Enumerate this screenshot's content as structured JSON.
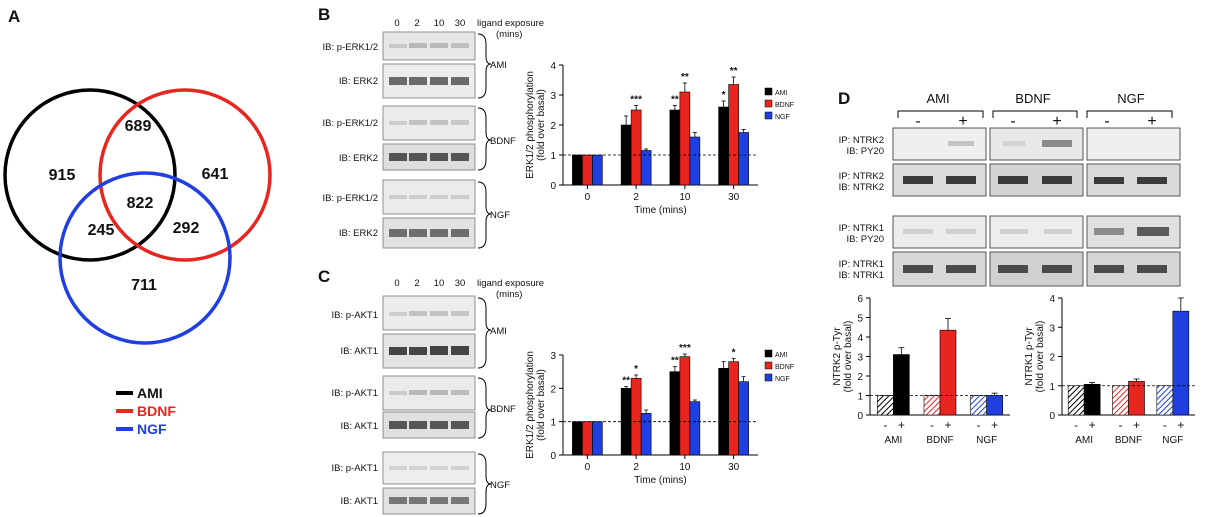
{
  "panels": {
    "a": {
      "letter": "A",
      "venn": {
        "ami_only": "915",
        "bdnf_only": "641",
        "ngf_only": "711",
        "ami_bdnf": "689",
        "ami_ngf": "245",
        "bdnf_ngf": "292",
        "all": "822"
      },
      "legend": [
        {
          "label": "AMI",
          "color": "#000000"
        },
        {
          "label": "BDNF",
          "color": "#e8251f"
        },
        {
          "label": "NGF",
          "color": "#1f3fe0"
        }
      ]
    },
    "b": {
      "letter": "B",
      "lane_labels": [
        "0",
        "2",
        "10",
        "30"
      ],
      "exposure_label": "ligand exposure",
      "exposure_unit": "(mins)",
      "blots": [
        {
          "group": "AMI",
          "rows": [
            "IB: p-ERK1/2",
            "IB: ERK2"
          ]
        },
        {
          "group": "BDNF",
          "rows": [
            "IB: p-ERK1/2",
            "IB: ERK2"
          ]
        },
        {
          "group": "NGF",
          "rows": [
            "IB: p-ERK1/2",
            "IB: ERK2"
          ]
        }
      ]
    },
    "c": {
      "letter": "C",
      "lane_labels": [
        "0",
        "2",
        "10",
        "30"
      ],
      "exposure_label": "ligand exposure",
      "exposure_unit": "(mins)",
      "blots": [
        {
          "group": "AMI",
          "rows": [
            "IB: p-AKT1",
            "IB: AKT1"
          ]
        },
        {
          "group": "BDNF",
          "rows": [
            "IB: p-AKT1",
            "IB: AKT1"
          ]
        },
        {
          "group": "NGF",
          "rows": [
            "IB: p-AKT1",
            "IB: AKT1"
          ]
        }
      ]
    },
    "d": {
      "letter": "D",
      "groups": [
        "AMI",
        "BDNF",
        "NGF"
      ],
      "sign_minus": "-",
      "sign_plus": "+",
      "blot_rows": [
        {
          "lines": [
            "IP: NTRK2",
            "IB: PY20"
          ]
        },
        {
          "lines": [
            "IP: NTRK2",
            "IB: NTRK2"
          ]
        },
        {
          "lines": [
            "IP: NTRK1",
            "IB: PY20"
          ]
        },
        {
          "lines": [
            "IP: NTRK1",
            "IB: NTRK1"
          ]
        }
      ]
    }
  },
  "chart_data": [
    {
      "id": "b",
      "type": "bar",
      "title": "",
      "xlabel": "Time (mins)",
      "ylabel": [
        "ERK1/2 phosphorylation",
        "(fold over basal)"
      ],
      "categories": [
        "0",
        "2",
        "10",
        "30"
      ],
      "ylim": [
        0,
        4
      ],
      "yticks": [
        "0",
        "1",
        "2",
        "3",
        "4"
      ],
      "baseline": 1,
      "series": [
        {
          "name": "AMI",
          "color": "#000000",
          "values": [
            1,
            2.0,
            2.5,
            2.6
          ],
          "errors": [
            0,
            0.3,
            0.15,
            0.2
          ]
        },
        {
          "name": "BDNF",
          "color": "#e8251f",
          "values": [
            1,
            2.5,
            3.1,
            3.35
          ],
          "errors": [
            0,
            0.15,
            0.3,
            0.25
          ]
        },
        {
          "name": "NGF",
          "color": "#1f3fe0",
          "values": [
            1,
            1.15,
            1.6,
            1.75
          ],
          "errors": [
            0,
            0.05,
            0.15,
            0.1
          ]
        }
      ],
      "annotations": [
        {
          "category": "2",
          "series": "BDNF",
          "text": "***"
        },
        {
          "category": "10",
          "series": "AMI",
          "text": "**"
        },
        {
          "category": "10",
          "series": "BDNF",
          "text": "**"
        },
        {
          "category": "30",
          "series": "AMI",
          "text": "*"
        },
        {
          "category": "30",
          "series": "BDNF",
          "text": "**"
        }
      ]
    },
    {
      "id": "c",
      "type": "bar",
      "title": "",
      "xlabel": "Time (mins)",
      "ylabel": [
        "ERK1/2 phosphorylation",
        "(fold over basal)"
      ],
      "categories": [
        "0",
        "2",
        "10",
        "30"
      ],
      "ylim": [
        0,
        3
      ],
      "yticks": [
        "0",
        "1",
        "2",
        "3"
      ],
      "baseline": 1,
      "series": [
        {
          "name": "AMI",
          "color": "#000000",
          "values": [
            1,
            2.0,
            2.5,
            2.6
          ],
          "errors": [
            0,
            0.05,
            0.15,
            0.2
          ]
        },
        {
          "name": "BDNF",
          "color": "#e8251f",
          "values": [
            1,
            2.3,
            2.95,
            2.8
          ],
          "errors": [
            0,
            0.1,
            0.08,
            0.1
          ]
        },
        {
          "name": "NGF",
          "color": "#1f3fe0",
          "values": [
            1,
            1.25,
            1.6,
            2.2
          ],
          "errors": [
            0,
            0.1,
            0.05,
            0.15
          ]
        }
      ],
      "annotations": [
        {
          "category": "2",
          "series": "AMI",
          "text": "**"
        },
        {
          "category": "2",
          "series": "BDNF",
          "text": "*"
        },
        {
          "category": "10",
          "series": "AMI",
          "text": "**"
        },
        {
          "category": "10",
          "series": "BDNF",
          "text": "***"
        },
        {
          "category": "30",
          "series": "BDNF",
          "text": "*"
        }
      ]
    },
    {
      "id": "d1",
      "type": "bar",
      "title": "",
      "xlabel": "",
      "ylabel": [
        "NTRK2 p-Tyr",
        "(fold over basal)"
      ],
      "categories": [
        "AMI",
        "BDNF",
        "NGF"
      ],
      "ylim": [
        0,
        6
      ],
      "yticks": [
        "0",
        "1",
        "2",
        "3",
        "4",
        "5",
        "6"
      ],
      "baseline": 1,
      "bars": [
        {
          "group": "AMI",
          "sign": "-",
          "value": 1.0,
          "error": 0,
          "color": "#000000",
          "hatched": true
        },
        {
          "group": "AMI",
          "sign": "+",
          "value": 3.1,
          "error": 0.35,
          "color": "#000000",
          "hatched": false
        },
        {
          "group": "BDNF",
          "sign": "-",
          "value": 1.0,
          "error": 0,
          "color": "#e8251f",
          "hatched": true
        },
        {
          "group": "BDNF",
          "sign": "+",
          "value": 4.35,
          "error": 0.6,
          "color": "#e8251f",
          "hatched": false
        },
        {
          "group": "NGF",
          "sign": "-",
          "value": 1.0,
          "error": 0,
          "color": "#1f3fe0",
          "hatched": true
        },
        {
          "group": "NGF",
          "sign": "+",
          "value": 1.0,
          "error": 0.12,
          "color": "#1f3fe0",
          "hatched": false
        }
      ]
    },
    {
      "id": "d2",
      "type": "bar",
      "title": "",
      "xlabel": "",
      "ylabel": [
        "NTRK1 p-Tyr",
        "(fold over basal)"
      ],
      "categories": [
        "AMI",
        "BDNF",
        "NGF"
      ],
      "ylim": [
        0,
        4
      ],
      "yticks": [
        "0",
        "1",
        "2",
        "3",
        "4"
      ],
      "baseline": 1,
      "bars": [
        {
          "group": "AMI",
          "sign": "-",
          "value": 1.0,
          "error": 0,
          "color": "#000000",
          "hatched": true
        },
        {
          "group": "AMI",
          "sign": "+",
          "value": 1.05,
          "error": 0.06,
          "color": "#000000",
          "hatched": false
        },
        {
          "group": "BDNF",
          "sign": "-",
          "value": 1.0,
          "error": 0,
          "color": "#e8251f",
          "hatched": true
        },
        {
          "group": "BDNF",
          "sign": "+",
          "value": 1.15,
          "error": 0.08,
          "color": "#e8251f",
          "hatched": false
        },
        {
          "group": "NGF",
          "sign": "-",
          "value": 1.0,
          "error": 0,
          "color": "#1f3fe0",
          "hatched": true
        },
        {
          "group": "NGF",
          "sign": "+",
          "value": 3.55,
          "error": 0.45,
          "color": "#1f3fe0",
          "hatched": false
        }
      ]
    }
  ]
}
